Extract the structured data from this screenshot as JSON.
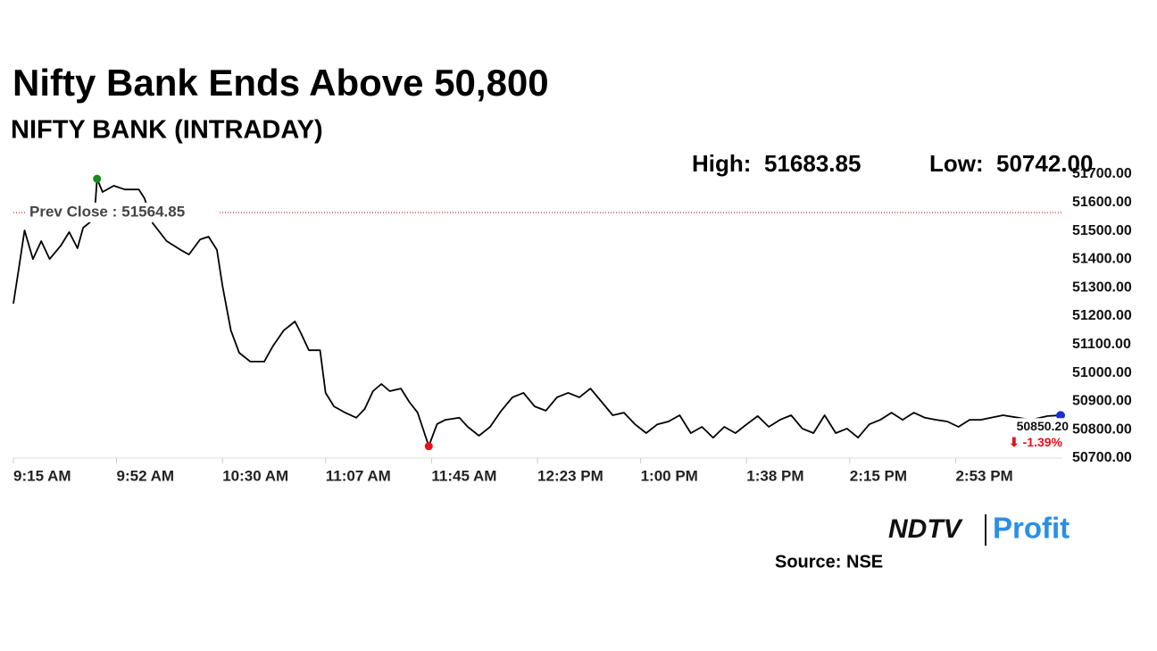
{
  "chart_data": {
    "type": "line",
    "title": "Nifty Bank Ends Above 50,800",
    "subtitle": "NIFTY BANK (INTRADAY)",
    "color": "#000000",
    "x": [
      "9:15 AM",
      "9:17 AM",
      "9:19 AM",
      "9:22 AM",
      "9:25 AM",
      "9:28 AM",
      "9:32 AM",
      "9:35 AM",
      "9:38 AM",
      "9:40 AM",
      "9:44 AM",
      "9:45 AM",
      "9:47 AM",
      "9:51 AM",
      "9:55 AM",
      "10:00 AM",
      "10:02 AM",
      "10:05 AM",
      "10:10 AM",
      "10:15 AM",
      "10:18 AM",
      "10:22 AM",
      "10:25 AM",
      "10:28 AM",
      "10:30 AM",
      "10:33 AM",
      "10:36 AM",
      "10:40 AM",
      "10:45 AM",
      "10:48 AM",
      "10:52 AM",
      "10:56 AM",
      "10:58 AM",
      "11:01 AM",
      "11:05 AM",
      "11:07 AM",
      "11:10 AM",
      "11:14 AM",
      "11:18 AM",
      "11:21 AM",
      "11:24 AM",
      "11:27 AM",
      "11:30 AM",
      "11:34 AM",
      "11:37 AM",
      "11:40 AM",
      "11:44 AM",
      "11:47 AM",
      "11:50 AM",
      "11:55 AM",
      "11:58 AM",
      "12:02 PM",
      "12:06 PM",
      "12:10 PM",
      "12:14 PM",
      "12:18 PM",
      "12:22 PM",
      "12:26 PM",
      "12:30 PM",
      "12:34 PM",
      "12:38 PM",
      "12:42 PM",
      "12:46 PM",
      "12:50 PM",
      "12:54 PM",
      "12:58 PM",
      "1:02 PM",
      "1:06 PM",
      "1:10 PM",
      "1:14 PM",
      "1:18 PM",
      "1:22 PM",
      "1:26 PM",
      "1:30 PM",
      "1:34 PM",
      "1:38 PM",
      "1:42 PM",
      "1:46 PM",
      "1:50 PM",
      "1:54 PM",
      "1:58 PM",
      "2:02 PM",
      "2:06 PM",
      "2:10 PM",
      "2:14 PM",
      "2:18 PM",
      "2:22 PM",
      "2:26 PM",
      "2:30 PM",
      "2:34 PM",
      "2:38 PM",
      "2:42 PM",
      "2:46 PM",
      "2:50 PM",
      "2:54 PM",
      "2:58 PM",
      "3:02 PM",
      "3:10 PM",
      "3:20 PM",
      "3:26 PM",
      "3:30 PM"
    ],
    "values": [
      51244,
      51370,
      51502,
      51401,
      51464,
      51401,
      51448,
      51496,
      51439,
      51511,
      51543,
      51683.85,
      51637,
      51659,
      51646,
      51646,
      51615,
      51527,
      51464,
      51433,
      51417,
      51470,
      51480,
      51433,
      51307,
      51150,
      51071,
      51040,
      51040,
      51093,
      51150,
      51181,
      51143,
      51080,
      51080,
      50930,
      50882,
      50860,
      50842,
      50873,
      50936,
      50961,
      50936,
      50945,
      50898,
      50860,
      50742,
      50820,
      50835,
      50842,
      50810,
      50779,
      50810,
      50867,
      50914,
      50930,
      50882,
      50867,
      50914,
      50930,
      50914,
      50945,
      50898,
      50851,
      50860,
      50819,
      50788,
      50819,
      50829,
      50851,
      50788,
      50810,
      50772,
      50810,
      50788,
      50819,
      50848,
      50810,
      50835,
      50851,
      50804,
      50788,
      50851,
      50788,
      50804,
      50772,
      50819,
      50835,
      50860,
      50835,
      50860,
      50842,
      50835,
      50829,
      50810,
      50835,
      50835,
      50851,
      50835,
      50848,
      50850.2
    ],
    "xlim": [
      "9:15 AM",
      "3:30 PM"
    ],
    "xticks": [
      "9:15 AM",
      "9:52 AM",
      "10:30 AM",
      "11:07 AM",
      "11:45 AM",
      "12:23 PM",
      "1:00 PM",
      "1:38 PM",
      "2:15 PM",
      "2:53 PM"
    ],
    "ylim": [
      50700,
      51700
    ],
    "yticks": [
      {
        "value": 50700,
        "label": "50700.00"
      },
      {
        "value": 50800,
        "label": "50800.00"
      },
      {
        "value": 50900,
        "label": "50900.00"
      },
      {
        "value": 51000,
        "label": "51000.00"
      },
      {
        "value": 51100,
        "label": "51100.00"
      },
      {
        "value": 51200,
        "label": "51200.00"
      },
      {
        "value": 51300,
        "label": "51300.00"
      },
      {
        "value": 51400,
        "label": "51400.00"
      },
      {
        "value": 51500,
        "label": "51500.00"
      },
      {
        "value": 51600,
        "label": "51600.00"
      },
      {
        "value": 51700,
        "label": "51700.00"
      }
    ],
    "grid": false,
    "high": {
      "label": "High:",
      "value": 51683.85,
      "x": "9:45 AM",
      "color": "#1a8a1a"
    },
    "low": {
      "label": "Low:",
      "value": 50742.0,
      "value_label": "50742.00",
      "x": "11:44 AM",
      "color": "#e8101a"
    },
    "last": {
      "value": 50850.2,
      "value_label": "50850.20",
      "change_label": "⬇ -1.39%",
      "x": "3:30 PM",
      "color": "#1a2fd0",
      "change_color": "#e8101a"
    },
    "prev_close": {
      "label": "Prev Close :",
      "value": 51564.85,
      "color": "#c00000"
    },
    "source": "Source: NSE",
    "brand": {
      "ndtv": "NDTV",
      "profit": "Profit"
    }
  }
}
